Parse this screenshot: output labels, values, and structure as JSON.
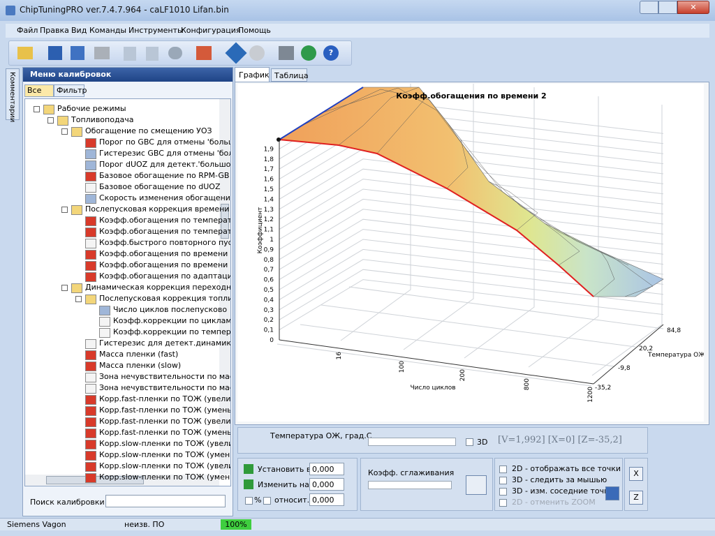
{
  "window": {
    "title": "ChipTuningPRO ver.7.4.7.964 - caLF1010 Lifan.bin"
  },
  "menu": [
    "Файл",
    "Правка",
    "Вид",
    "Команды",
    "Инструменты",
    "Конфигурация",
    "Помощь"
  ],
  "side_tab": "Комментарии",
  "left_panel": {
    "title": "Меню калибровок",
    "tabs": [
      "Все",
      "Фильтр"
    ],
    "tree": [
      "Рабочие режимы",
      "Топливоподача",
      "Обогащение по смещению УОЗ",
      "Порог по GBC для отмены 'больш",
      "Гистерезис GBC для отмены 'бол",
      "Порог dUOZ для детект.'большо",
      "Базовое обогащение по RPM-GB",
      "Базовое обогащение по dUOZ",
      "Скорость изменения обогащени",
      "Послепусковая коррекция времени",
      "Коэфф.обогащения по температ",
      "Коэфф.обогащения по температ",
      "Коэфф.быстрого повторного пус",
      "Коэфф.обогащения по времени 1",
      "Коэфф.обогащения по времени 2",
      "Коэфф.обогащения по адаптаци",
      "Динамическая коррекция переходны",
      "Послепусковая коррекция топли",
      "Число циклов послепусково",
      "Коэфф.коррекции по циклам",
      "Коэфф.коррекции по темпер",
      "Гистерезис для детект.динамики",
      "Масса пленки (fast)",
      "Масса пленки (slow)",
      "Зона нечувствительности по мас",
      "Зона нечувствительности по мас",
      "Корр.fast-пленки по ТОЖ (увели",
      "Корр.fast-пленки по ТОЖ (умень",
      "Корр.fast-пленки по ТОЖ (увели",
      "Корр.fast-пленки по ТОЖ (умень",
      "Корр.slow-пленки по ТОЖ (увели",
      "Корр.slow-пленки по ТОЖ (умень",
      "Корр.slow-пленки по ТОЖ (увели",
      "Корр.slow-пленки по ТОЖ (умень"
    ],
    "search_label": "Поиск калибровки"
  },
  "view_tabs": [
    "График",
    "Таблица"
  ],
  "chart": {
    "title": "Коэфф.обогащения по времени 2",
    "y_axis_label": "Коэффициент",
    "y_ticks": [
      "0",
      "0,1",
      "0,2",
      "0,3",
      "0,4",
      "0,5",
      "0,6",
      "0,7",
      "0,8",
      "0,9",
      "1",
      "1,1",
      "1,2",
      "1,3",
      "1,4",
      "1,5",
      "1,6",
      "1,7",
      "1,8",
      "1,9"
    ],
    "x_axis_label": "Число циклов",
    "x_ticks": [
      "16",
      "100",
      "200",
      "800",
      "1200"
    ],
    "z_axis_label": "Температура ОЖ,г",
    "z_ticks": [
      "84,8",
      "20,2",
      "-9,8",
      "-35,2"
    ]
  },
  "slider_panel": {
    "label": "Температура ОЖ, град.С",
    "check_3d": "3D",
    "readout": "[V=1,992] [X=0] [Z=-35,2]"
  },
  "edit_panel": {
    "set_label": "Установить в",
    "set_value": "0,000",
    "change_label": "Изменить на",
    "change_value": "0,000",
    "percent": "%",
    "relative": "относит.",
    "relative_value": "0,000"
  },
  "smooth_label": "Коэфф. сглаживания",
  "options": [
    "2D - отображать все точки",
    "3D - следить за мышью",
    "3D - изм. соседние точки",
    "2D - отменить ZOOM"
  ],
  "buttons": [
    "X",
    "Z"
  ],
  "status": [
    "Siemens Vagon",
    "неизв. ПО",
    "100%"
  ]
}
